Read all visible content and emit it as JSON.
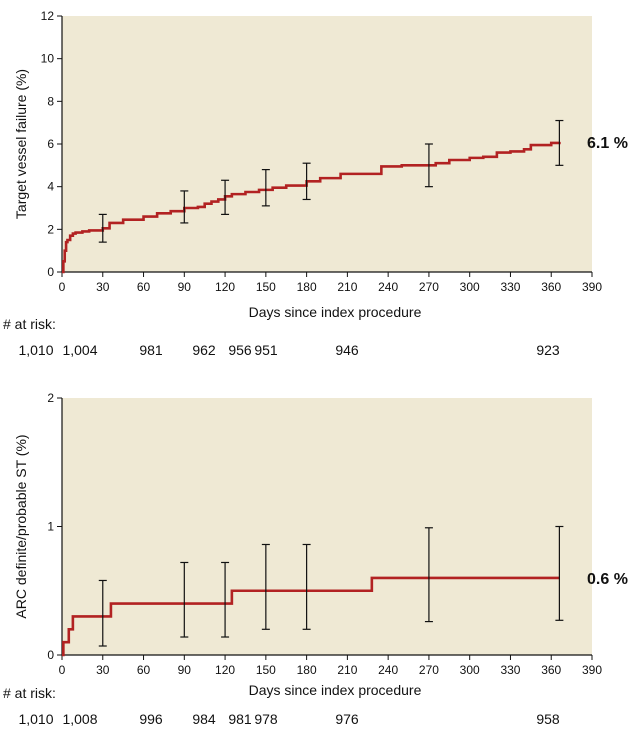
{
  "chart_data": [
    {
      "type": "line",
      "ylabel": "Target vessel failure (%)",
      "xlabel": "Days since index procedure",
      "xlim": [
        0,
        390
      ],
      "ylim": [
        0,
        12
      ],
      "x_ticks": [
        0,
        30,
        60,
        90,
        120,
        150,
        180,
        210,
        240,
        270,
        300,
        330,
        360,
        390
      ],
      "y_ticks": [
        0,
        2,
        4,
        6,
        8,
        10,
        12
      ],
      "line_color": "#b22222",
      "background_color": "#efe9d4",
      "grid": false,
      "series": [
        {
          "x": [
            0,
            1,
            2,
            3,
            4,
            6,
            8,
            10,
            15,
            20,
            30,
            35,
            45,
            60,
            70,
            80,
            90,
            100,
            105,
            110,
            115,
            120,
            125,
            135,
            145,
            155,
            165,
            180,
            190,
            205,
            220,
            235,
            250,
            265,
            275,
            285,
            300,
            310,
            320,
            330,
            340,
            345,
            360,
            366
          ],
          "y": [
            0,
            0.5,
            1.0,
            1.4,
            1.5,
            1.7,
            1.8,
            1.85,
            1.9,
            1.95,
            2.05,
            2.3,
            2.45,
            2.6,
            2.75,
            2.85,
            3.0,
            3.05,
            3.2,
            3.3,
            3.4,
            3.55,
            3.65,
            3.75,
            3.85,
            3.95,
            4.05,
            4.25,
            4.4,
            4.6,
            4.6,
            4.95,
            5.0,
            5.0,
            5.1,
            5.25,
            5.35,
            5.4,
            5.6,
            5.65,
            5.75,
            5.95,
            6.05,
            6.1
          ]
        }
      ],
      "error_bars": [
        {
          "x": 30,
          "low": 1.4,
          "high": 2.7
        },
        {
          "x": 90,
          "low": 2.3,
          "high": 3.8
        },
        {
          "x": 120,
          "low": 2.7,
          "high": 4.3
        },
        {
          "x": 150,
          "low": 3.1,
          "high": 4.8
        },
        {
          "x": 180,
          "low": 3.4,
          "high": 5.1
        },
        {
          "x": 270,
          "low": 4.0,
          "high": 6.0
        },
        {
          "x": 366,
          "low": 5.0,
          "high": 7.1
        }
      ],
      "final_label": "6.1 %",
      "at_risk_label": "# at risk:",
      "at_risk": [
        {
          "x": 0,
          "label": "1,010"
        },
        {
          "x": 30,
          "label": "1,004"
        },
        {
          "x": 90,
          "label": "981"
        },
        {
          "x": 120,
          "label": "962"
        },
        {
          "x": 150,
          "label": "956"
        },
        {
          "x": 180,
          "label": "951"
        },
        {
          "x": 270,
          "label": "946"
        },
        {
          "x": 366,
          "label": "923"
        }
      ]
    },
    {
      "type": "line",
      "ylabel": "ARC definite/probable ST (%)",
      "xlabel": "Days since index procedure",
      "xlim": [
        0,
        390
      ],
      "ylim": [
        0,
        2
      ],
      "x_ticks": [
        0,
        30,
        60,
        90,
        120,
        150,
        180,
        210,
        240,
        270,
        300,
        330,
        360,
        390
      ],
      "y_ticks": [
        0,
        1,
        2
      ],
      "line_color": "#b22222",
      "background_color": "#efe9d4",
      "grid": false,
      "series": [
        {
          "x": [
            0,
            1,
            5,
            8,
            10,
            36,
            125,
            228,
            366
          ],
          "y": [
            0,
            0.1,
            0.2,
            0.3,
            0.3,
            0.4,
            0.5,
            0.6,
            0.6
          ]
        }
      ],
      "error_bars": [
        {
          "x": 30,
          "low": 0.07,
          "high": 0.58
        },
        {
          "x": 90,
          "low": 0.14,
          "high": 0.72
        },
        {
          "x": 120,
          "low": 0.14,
          "high": 0.72
        },
        {
          "x": 150,
          "low": 0.2,
          "high": 0.86
        },
        {
          "x": 180,
          "low": 0.2,
          "high": 0.86
        },
        {
          "x": 270,
          "low": 0.26,
          "high": 0.99
        },
        {
          "x": 366,
          "low": 0.27,
          "high": 1.0
        }
      ],
      "final_label": "0.6 %",
      "at_risk_label": "# at risk:",
      "at_risk": [
        {
          "x": 0,
          "label": "1,010"
        },
        {
          "x": 30,
          "label": "1,008"
        },
        {
          "x": 90,
          "label": "996"
        },
        {
          "x": 120,
          "label": "984"
        },
        {
          "x": 150,
          "label": "981"
        },
        {
          "x": 180,
          "label": "978"
        },
        {
          "x": 270,
          "label": "976"
        },
        {
          "x": 366,
          "label": "958"
        }
      ]
    }
  ]
}
